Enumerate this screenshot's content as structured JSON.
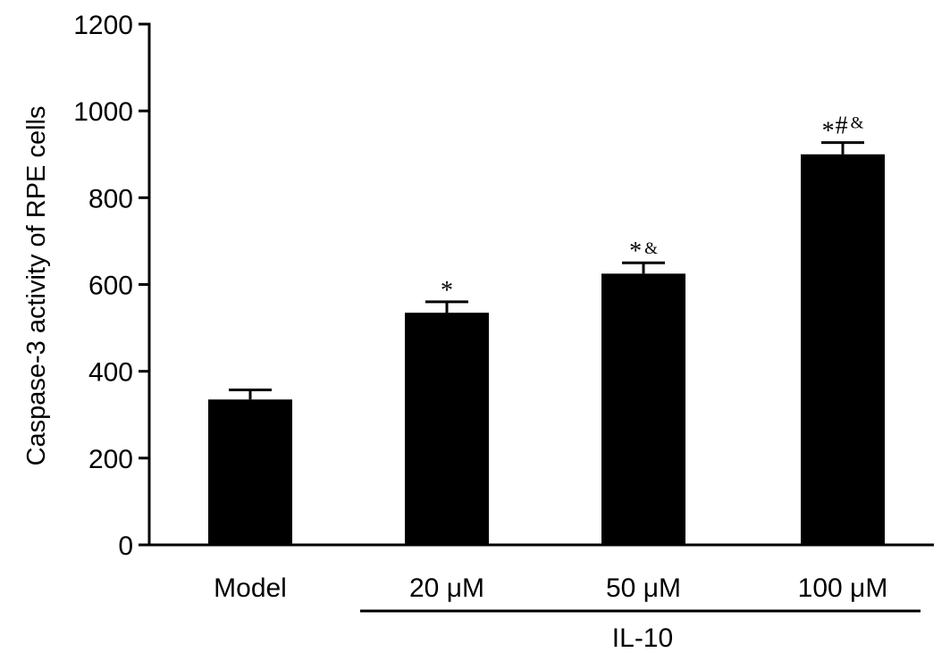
{
  "chart_data": {
    "type": "bar",
    "title": "",
    "ylabel": "Caspase-3 activity of RPE cells",
    "xlabel": "",
    "ylim": [
      0,
      1200
    ],
    "yticks": [
      0,
      200,
      400,
      600,
      800,
      1000,
      1200
    ],
    "categories": [
      "Model",
      "20 μM",
      "50 μM",
      "100 μM"
    ],
    "values": [
      335,
      535,
      625,
      900
    ],
    "error": [
      22,
      25,
      25,
      27
    ],
    "annotations": [
      "",
      "*",
      "*&",
      "*#&"
    ],
    "group_label": {
      "text": "IL-10",
      "categories": [
        "20 μM",
        "50 μM",
        "100 μM"
      ]
    },
    "bar_color": "#000000",
    "grid": false,
    "legend": "none"
  }
}
